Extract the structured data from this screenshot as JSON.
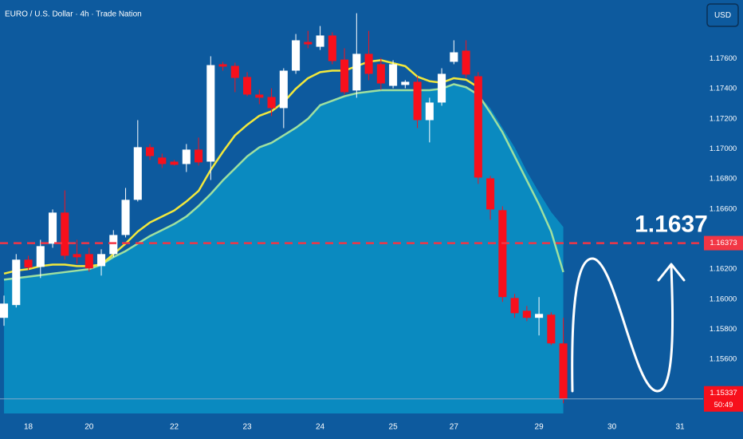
{
  "chart_data": {
    "type": "candlestick",
    "title": "EURO / U.S. Dollar · 4h · Trade Nation",
    "currency": "USD",
    "x": [
      0,
      1,
      2,
      3,
      4,
      5,
      6,
      7,
      8,
      9,
      10,
      11,
      12,
      13,
      14,
      15,
      16,
      17,
      18,
      19,
      20,
      21,
      22,
      23,
      24,
      25,
      26,
      27,
      28,
      29,
      30,
      31,
      32,
      33,
      34,
      35,
      36,
      37,
      38,
      39,
      40,
      41,
      42,
      43,
      44,
      45,
      46
    ],
    "open": [
      1.15876,
      1.15961,
      1.16263,
      1.16215,
      1.16369,
      1.16576,
      1.163,
      1.163,
      1.1622,
      1.163,
      1.16427,
      1.16661,
      1.17011,
      1.16942,
      1.16915,
      1.16899,
      1.16995,
      1.16915,
      1.17563,
      1.17552,
      1.17478,
      1.17361,
      1.17345,
      1.17271,
      1.1752,
      1.17711,
      1.17679,
      1.17754,
      1.17594,
      1.17388,
      1.17632,
      1.17563,
      1.17419,
      1.17425,
      1.17446,
      1.17191,
      1.17308,
      1.17579,
      1.17653,
      1.17483,
      1.16804,
      1.16592,
      1.16008,
      1.15923,
      1.15876,
      1.15897,
      1.15706
    ],
    "high": [
      1.16024,
      1.163,
      1.16289,
      1.16395,
      1.16597,
      1.16724,
      1.16395,
      1.16342,
      1.16332,
      1.16459,
      1.1674,
      1.17191,
      1.17032,
      1.16968,
      1.16926,
      1.17032,
      1.17075,
      1.17616,
      1.17579,
      1.17573,
      1.1751,
      1.17393,
      1.17403,
      1.17536,
      1.17764,
      1.17785,
      1.17817,
      1.17775,
      1.17669,
      1.17902,
      1.17785,
      1.17605,
      1.17589,
      1.17457,
      1.17483,
      1.1734,
      1.17536,
      1.17722,
      1.17722,
      1.1751,
      1.1682,
      1.16618,
      1.16035,
      1.15955,
      1.16014,
      1.15913,
      1.15876
    ],
    "low": [
      1.15823,
      1.15945,
      1.16194,
      1.16141,
      1.16342,
      1.16263,
      1.16236,
      1.16183,
      1.16157,
      1.16279,
      1.16411,
      1.1665,
      1.16926,
      1.16873,
      1.16889,
      1.16846,
      1.16889,
      1.16793,
      1.1752,
      1.17377,
      1.1735,
      1.17297,
      1.17218,
      1.17138,
      1.17499,
      1.17669,
      1.17658,
      1.17563,
      1.17361,
      1.1734,
      1.17457,
      1.17393,
      1.17403,
      1.17403,
      1.17138,
      1.17043,
      1.17287,
      1.17563,
      1.17472,
      1.16767,
      1.16528,
      1.15982,
      1.15876,
      1.15854,
      1.15759,
      1.15695,
      1.15308
    ],
    "close": [
      1.15971,
      1.16263,
      1.1621,
      1.16353,
      1.16576,
      1.16289,
      1.16279,
      1.16205,
      1.163,
      1.16427,
      1.16661,
      1.17011,
      1.16952,
      1.16899,
      1.16894,
      1.16995,
      1.1691,
      1.17557,
      1.17547,
      1.17472,
      1.17361,
      1.1734,
      1.17271,
      1.1752,
      1.17722,
      1.17695,
      1.17754,
      1.17584,
      1.17377,
      1.17632,
      1.17499,
      1.17435,
      1.17563,
      1.17446,
      1.17191,
      1.17308,
      1.17499,
      1.17642,
      1.17494,
      1.16809,
      1.16597,
      1.16014,
      1.15907,
      1.15876,
      1.15902,
      1.15706,
      1.15337
    ],
    "up_color": "#ffffff",
    "down_color": "#f7101c",
    "series": [
      {
        "color": "#f2e83c",
        "values": [
          1.1617,
          1.1619,
          1.162,
          1.1622,
          1.1623,
          1.1623,
          1.1622,
          1.1622,
          1.1623,
          1.163,
          1.1637,
          1.1645,
          1.1651,
          1.1655,
          1.1659,
          1.1665,
          1.1672,
          1.1686,
          1.1698,
          1.1709,
          1.1716,
          1.1722,
          1.1725,
          1.1731,
          1.174,
          1.1747,
          1.1751,
          1.1752,
          1.1752,
          1.1755,
          1.1758,
          1.1759,
          1.1757,
          1.1755,
          1.1748,
          1.1745,
          1.1744,
          1.1747,
          1.1746,
          1.1741,
          null,
          null,
          null,
          null,
          null,
          null,
          null
        ]
      },
      {
        "color": "#9ee0a0",
        "values": [
          1.1613,
          1.1614,
          1.1615,
          1.1616,
          1.1617,
          1.1618,
          1.1619,
          1.162,
          1.1623,
          1.1628,
          1.1632,
          1.1637,
          1.1642,
          1.1646,
          1.165,
          1.1655,
          1.1662,
          1.167,
          1.1679,
          1.1687,
          1.1695,
          1.1701,
          1.1704,
          1.1709,
          1.1714,
          1.172,
          1.1729,
          1.1732,
          1.1735,
          1.1737,
          1.1738,
          1.1739,
          1.1739,
          1.1739,
          1.1739,
          1.1739,
          1.174,
          1.1743,
          1.1741,
          1.1736,
          1.1724,
          1.1711,
          1.1695,
          1.1679,
          1.1663,
          1.1645,
          1.1618
        ]
      }
    ],
    "area": {
      "color": "#0b93c6",
      "values": [
        1.1613,
        1.1614,
        1.1615,
        1.1616,
        1.1617,
        1.1618,
        1.1619,
        1.162,
        1.1623,
        1.1628,
        1.1632,
        1.1637,
        1.1642,
        1.1646,
        1.165,
        1.1655,
        1.1662,
        1.167,
        1.1679,
        1.1687,
        1.1695,
        1.1701,
        1.1704,
        1.1709,
        1.1714,
        1.172,
        1.1729,
        1.1732,
        1.1735,
        1.1737,
        1.1738,
        1.1739,
        1.1739,
        1.1739,
        1.1739,
        1.1739,
        1.174,
        1.1743,
        1.1741,
        1.1736,
        1.1727,
        1.1714,
        1.1701,
        1.1685,
        1.1671,
        1.1658,
        1.1648
      ]
    },
    "level": {
      "value": 1.16373,
      "label": "1.16373",
      "annotation": "1.1637",
      "color": "#f23645"
    },
    "last_price_label": "1.15337",
    "countdown": "50:49",
    "xlim": [
      -0.33,
      57.5
    ],
    "ylim": [
      1.1524,
      1.1799
    ],
    "xticks": [
      {
        "value": 2,
        "label": "18"
      },
      {
        "value": 7,
        "label": "20"
      },
      {
        "value": 14,
        "label": "22"
      },
      {
        "value": 20,
        "label": "23"
      },
      {
        "value": 26,
        "label": "24"
      },
      {
        "value": 32,
        "label": "25"
      },
      {
        "value": 37,
        "label": "27"
      },
      {
        "value": 44,
        "label": "29"
      },
      {
        "value": 50,
        "label": "30"
      },
      {
        "value": 55.6,
        "label": "31"
      }
    ],
    "yticks": [
      {
        "value": 1.176,
        "label": "1.17600"
      },
      {
        "value": 1.174,
        "label": "1.17400"
      },
      {
        "value": 1.172,
        "label": "1.17200"
      },
      {
        "value": 1.17,
        "label": "1.17000"
      },
      {
        "value": 1.168,
        "label": "1.16800"
      },
      {
        "value": 1.166,
        "label": "1.16600"
      },
      {
        "value": 1.162,
        "label": "1.16200"
      },
      {
        "value": 1.16,
        "label": "1.16000"
      },
      {
        "value": 1.158,
        "label": "1.15800"
      },
      {
        "value": 1.156,
        "label": "1.15600"
      }
    ]
  }
}
